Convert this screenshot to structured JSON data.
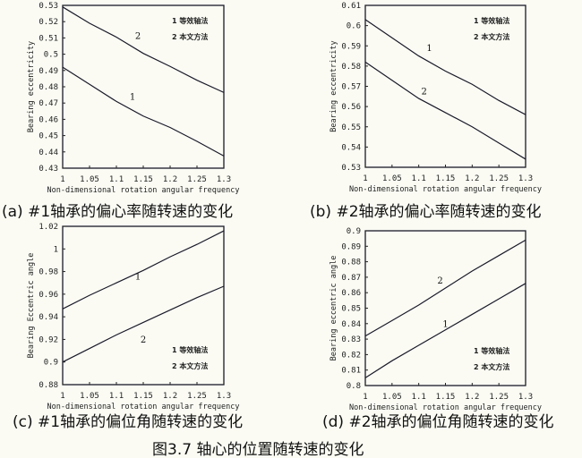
{
  "figure_caption": "图3.7 轴心的位置随转速的变化",
  "chart_data": [
    {
      "type": "line",
      "caption": "(a) #1轴承的偏心率随转速的变化",
      "xlabel": "Non-dimensional rotation angular frequency",
      "ylabel": "Bearing eccentricity",
      "xlim": [
        1,
        1.3
      ],
      "ylim": [
        0.43,
        0.53
      ],
      "xticks": [
        "1",
        "1.05",
        "1.1",
        "1.15",
        "1.2",
        "1.25",
        "1.3"
      ],
      "yticks": [
        "0.43",
        "0.44",
        "0.45",
        "0.46",
        "0.47",
        "0.48",
        "0.49",
        "0.5",
        "0.51",
        "0.52",
        "0.53"
      ],
      "grid": false,
      "legend": {
        "placement": "top-right",
        "entries": [
          "1 等效轴法",
          "2 本文方法"
        ]
      },
      "x": [
        1,
        1.05,
        1.1,
        1.15,
        1.2,
        1.25,
        1.3
      ],
      "series": [
        {
          "label": "1",
          "values": [
            0.492,
            0.4815,
            0.471,
            0.462,
            0.455,
            0.4465,
            0.4375
          ],
          "label_at": [
            1.13,
            0.472
          ]
        },
        {
          "label": "2",
          "values": [
            0.529,
            0.519,
            0.5105,
            0.5005,
            0.4925,
            0.484,
            0.4765
          ],
          "label_at": [
            1.14,
            0.5095
          ]
        }
      ]
    },
    {
      "type": "line",
      "caption": "(b) #2轴承的偏心率随转速的变化",
      "xlabel": "Non-dimensional rotation angular frequency",
      "ylabel": "Bearing eccentricity",
      "xlim": [
        1,
        1.3
      ],
      "ylim": [
        0.53,
        0.61
      ],
      "xticks": [
        "1",
        "1.05",
        "1.1",
        "1.15",
        "1.2",
        "1.25",
        "1.3"
      ],
      "yticks": [
        "0.53",
        "0.54",
        "0.55",
        "0.56",
        "0.57",
        "0.58",
        "0.59",
        "0.6",
        "0.61"
      ],
      "grid": false,
      "legend": {
        "placement": "top-right",
        "entries": [
          "1 等效轴法",
          "2 本文方法"
        ]
      },
      "x": [
        1,
        1.05,
        1.1,
        1.15,
        1.2,
        1.25,
        1.3
      ],
      "series": [
        {
          "label": "1",
          "values": [
            0.603,
            0.594,
            0.585,
            0.5775,
            0.571,
            0.563,
            0.556
          ],
          "label_at": [
            1.12,
            0.5875
          ]
        },
        {
          "label": "2",
          "values": [
            0.582,
            0.573,
            0.564,
            0.557,
            0.55,
            0.542,
            0.534
          ],
          "label_at": [
            1.11,
            0.566
          ]
        }
      ]
    },
    {
      "type": "line",
      "caption": "(c) #1轴承的偏位角随转速的变化",
      "xlabel": "Non-dimensional rotation angular frequency",
      "ylabel": "Bearing Eccentric angle",
      "xlim": [
        1,
        1.3
      ],
      "ylim": [
        0.88,
        1.02
      ],
      "xticks": [
        "1",
        "1.05",
        "1.1",
        "1.15",
        "1.2",
        "1.25",
        "1.3"
      ],
      "yticks": [
        "0.88",
        "0.9",
        "0.92",
        "0.94",
        "0.96",
        "0.98",
        "1",
        "1.02"
      ],
      "grid": false,
      "legend": {
        "placement": "bottom-right",
        "entries": [
          "1 等效轴法",
          "2 本文方法"
        ]
      },
      "x": [
        1,
        1.05,
        1.1,
        1.15,
        1.2,
        1.25,
        1.3
      ],
      "series": [
        {
          "label": "1",
          "values": [
            0.947,
            0.959,
            0.97,
            0.981,
            0.993,
            1.004,
            1.016
          ],
          "label_at": [
            1.14,
            0.973
          ]
        },
        {
          "label": "2",
          "values": [
            0.9,
            0.912,
            0.924,
            0.935,
            0.946,
            0.957,
            0.967
          ],
          "label_at": [
            1.15,
            0.917
          ]
        }
      ]
    },
    {
      "type": "line",
      "caption": "(d) #2轴承的偏位角随转速的变化",
      "xlabel": "Non-dimensional rotation angular frequency",
      "ylabel": "Bearing eccentric angle",
      "xlim": [
        1,
        1.3
      ],
      "ylim": [
        0.8,
        0.9
      ],
      "xticks": [
        "1",
        "1.05",
        "1.1",
        "1.15",
        "1.2",
        "1.25",
        "1.3"
      ],
      "yticks": [
        "0.8",
        "0.81",
        "0.82",
        "0.83",
        "0.84",
        "0.85",
        "0.86",
        "0.87",
        "0.88",
        "0.89",
        "0.9"
      ],
      "grid": false,
      "legend": {
        "placement": "bottom-right",
        "entries": [
          "1 等效轴法",
          "2 本文方法"
        ]
      },
      "x": [
        1,
        1.05,
        1.1,
        1.15,
        1.2,
        1.25,
        1.3
      ],
      "series": [
        {
          "label": "1",
          "values": [
            0.805,
            0.816,
            0.826,
            0.836,
            0.846,
            0.856,
            0.866
          ],
          "label_at": [
            1.15,
            0.838
          ]
        },
        {
          "label": "2",
          "values": [
            0.832,
            0.842,
            0.852,
            0.863,
            0.874,
            0.884,
            0.894
          ],
          "label_at": [
            1.14,
            0.866
          ]
        }
      ]
    }
  ]
}
